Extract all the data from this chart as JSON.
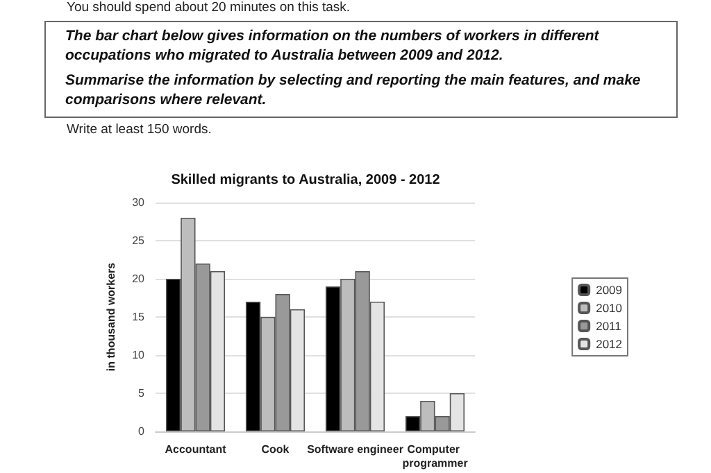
{
  "chart_data": {
    "type": "bar",
    "title": "Skilled migrants to Australia, 2009 - 2012",
    "ylabel": "in thousand workers",
    "annotations": [
      "You should spend about 20 minutes on this task.",
      "The bar chart below gives information on the numbers of workers in different occupations who migrated to Australia between 2009 and 2012.",
      "Summarise the information by selecting and reporting the main features, and make comparisons where relevant.",
      "Write at least 150 words."
    ],
    "categories": [
      "Accountant",
      "Cook",
      "Software engineer",
      "Computer programmer"
    ],
    "series": [
      {
        "name": "2009",
        "color": "#000000",
        "values": [
          20,
          17,
          19,
          2
        ]
      },
      {
        "name": "2010",
        "color": "#bdbdbd",
        "values": [
          28,
          15,
          20,
          4
        ]
      },
      {
        "name": "2011",
        "color": "#999999",
        "values": [
          22,
          18,
          21,
          2
        ]
      },
      {
        "name": "2012",
        "color": "#e4e4e4",
        "values": [
          21,
          16,
          17,
          5
        ]
      }
    ],
    "ylim": [
      0,
      30
    ],
    "yticks": [
      0,
      5,
      10,
      15,
      20,
      25,
      30
    ],
    "grid": "y",
    "legend": "right"
  }
}
